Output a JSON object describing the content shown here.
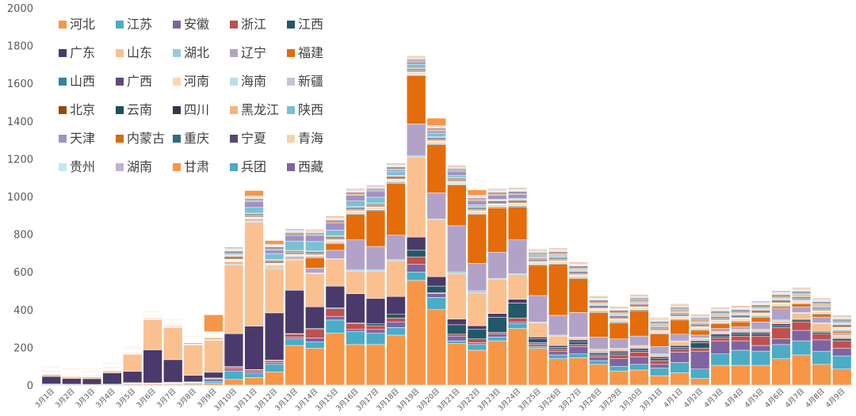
{
  "chart_data": {
    "type": "bar",
    "stacked": true,
    "ylim": [
      0,
      2000
    ],
    "yticks": [
      0,
      200,
      400,
      600,
      800,
      1000,
      1200,
      1400,
      1600,
      1800,
      2000
    ],
    "grid": false,
    "legend_position": "top-left",
    "categories": [
      "3月1日",
      "3月2日",
      "3月3日",
      "3月4日",
      "3月5日",
      "3月6日",
      "3月7日",
      "3月8日",
      "3月9日",
      "3月10日",
      "3月11日",
      "3月12日",
      "3月13日",
      "3月14日",
      "3月15日",
      "3月16日",
      "3月17日",
      "3月18日",
      "3月19日",
      "3月20日",
      "3月21日",
      "3月22日",
      "3月23日",
      "3月24日",
      "3月25日",
      "3月26日",
      "3月27日",
      "3月28日",
      "3月29日",
      "3月30日",
      "3月31日",
      "4月1日",
      "4月2日",
      "4月3日",
      "4月4日",
      "4月5日",
      "4月6日",
      "4月7日",
      "4月8日",
      "4月9日"
    ],
    "series": [
      {
        "name": "河北",
        "color": "#f79646",
        "values": [
          2,
          1,
          1,
          1,
          5,
          5,
          5,
          5,
          10,
          30,
          40,
          70,
          210,
          195,
          275,
          215,
          215,
          265,
          555,
          400,
          220,
          185,
          235,
          300,
          195,
          140,
          145,
          110,
          75,
          80,
          50,
          65,
          35,
          105,
          105,
          105,
          140,
          160,
          110,
          85
        ]
      },
      {
        "name": "江苏",
        "color": "#4bacc6",
        "values": [
          1,
          1,
          1,
          1,
          2,
          2,
          3,
          5,
          10,
          45,
          20,
          40,
          35,
          35,
          70,
          70,
          60,
          40,
          45,
          65,
          15,
          30,
          20,
          25,
          10,
          20,
          20,
          20,
          25,
          30,
          40,
          55,
          50,
          60,
          80,
          75,
          75,
          75,
          70,
          70
        ]
      },
      {
        "name": "安徽",
        "color": "#8064a2",
        "values": [
          1,
          1,
          1,
          1,
          2,
          1,
          3,
          3,
          10,
          10,
          10,
          10,
          10,
          20,
          20,
          10,
          20,
          30,
          40,
          20,
          25,
          10,
          15,
          10,
          10,
          20,
          40,
          20,
          40,
          40,
          20,
          55,
          95,
          70,
          50,
          30,
          30,
          55,
          60,
          40
        ]
      },
      {
        "name": "浙江",
        "color": "#c0504d",
        "values": [
          1,
          1,
          0,
          1,
          2,
          2,
          2,
          2,
          5,
          10,
          10,
          10,
          15,
          45,
          40,
          30,
          20,
          20,
          40,
          5,
          10,
          20,
          10,
          20,
          10,
          10,
          10,
          10,
          20,
          25,
          20,
          15,
          15,
          15,
          25,
          50,
          60,
          45,
          30,
          40
        ]
      },
      {
        "name": "江西",
        "color": "#215968",
        "values": [
          1,
          1,
          1,
          1,
          2,
          2,
          2,
          2,
          3,
          3,
          3,
          3,
          3,
          5,
          5,
          5,
          10,
          20,
          35,
          35,
          50,
          50,
          80,
          80,
          20,
          10,
          15,
          10,
          10,
          10,
          10,
          10,
          30,
          10,
          10,
          10,
          10,
          10,
          10,
          10
        ]
      },
      {
        "name": "广东",
        "color": "#4a3a6b",
        "values": [
          40,
          30,
          30,
          60,
          60,
          175,
          120,
          35,
          30,
          175,
          230,
          250,
          230,
          115,
          115,
          155,
          135,
          95,
          70,
          50,
          30,
          20,
          20,
          20,
          10,
          10,
          10,
          5,
          10,
          10,
          10,
          10,
          10,
          10,
          10,
          10,
          10,
          5,
          5,
          5
        ]
      },
      {
        "name": "山东",
        "color": "#fac090",
        "values": [
          10,
          10,
          10,
          10,
          90,
          160,
          170,
          160,
          170,
          365,
          550,
          235,
          160,
          175,
          140,
          120,
          145,
          190,
          425,
          300,
          240,
          175,
          180,
          130,
          75,
          50,
          10,
          10,
          10,
          10,
          10,
          20,
          10,
          10,
          10,
          10,
          15,
          30,
          40,
          10
        ]
      },
      {
        "name": "湖北",
        "color": "#93cddd",
        "values": [
          2,
          2,
          2,
          2,
          2,
          3,
          3,
          3,
          3,
          5,
          5,
          5,
          5,
          5,
          5,
          5,
          5,
          5,
          5,
          5,
          10,
          10,
          5,
          5,
          5,
          5,
          5,
          5,
          5,
          5,
          5,
          5,
          5,
          5,
          5,
          5,
          5,
          5,
          5,
          5
        ]
      },
      {
        "name": "辽宁",
        "color": "#b3a2c7",
        "values": [
          2,
          2,
          2,
          2,
          3,
          3,
          3,
          3,
          3,
          5,
          5,
          5,
          5,
          25,
          45,
          160,
          125,
          130,
          170,
          140,
          245,
          145,
          140,
          180,
          140,
          105,
          130,
          65,
          50,
          50,
          40,
          35,
          15,
          15,
          15,
          40,
          60,
          30,
          30,
          10
        ]
      },
      {
        "name": "福建",
        "color": "#e46c0a",
        "values": [
          2,
          2,
          2,
          2,
          2,
          3,
          3,
          5,
          5,
          5,
          5,
          5,
          5,
          55,
          35,
          135,
          190,
          275,
          255,
          255,
          215,
          260,
          235,
          175,
          160,
          270,
          180,
          130,
          85,
          135,
          65,
          75,
          25,
          25,
          25,
          25,
          10,
          15,
          15,
          10
        ]
      },
      {
        "name": "山西",
        "color": "#31859c",
        "values": [
          2,
          2,
          2,
          2,
          2,
          2,
          2,
          2,
          3,
          3,
          3,
          3,
          5,
          5,
          5,
          5,
          5,
          5,
          5,
          5,
          5,
          5,
          5,
          5,
          5,
          5,
          5,
          5,
          5,
          5,
          5,
          5,
          5,
          5,
          5,
          5,
          5,
          5,
          5,
          5
        ]
      },
      {
        "name": "广西",
        "color": "#604a7b",
        "values": [
          2,
          2,
          2,
          2,
          2,
          2,
          2,
          2,
          2,
          2,
          2,
          2,
          2,
          2,
          2,
          2,
          2,
          2,
          2,
          2,
          2,
          2,
          2,
          2,
          2,
          2,
          2,
          2,
          2,
          2,
          2,
          2,
          2,
          2,
          2,
          2,
          2,
          2,
          2,
          2
        ]
      },
      {
        "name": "河南",
        "color": "#fcd5b5",
        "values": [
          3,
          3,
          3,
          3,
          3,
          3,
          3,
          3,
          3,
          5,
          5,
          5,
          5,
          5,
          10,
          10,
          10,
          10,
          10,
          10,
          10,
          10,
          10,
          10,
          10,
          10,
          10,
          10,
          10,
          10,
          10,
          10,
          10,
          10,
          10,
          10,
          10,
          10,
          10,
          10
        ]
      },
      {
        "name": "海南",
        "color": "#b7dee8",
        "values": [
          1,
          1,
          1,
          1,
          1,
          1,
          1,
          1,
          1,
          2,
          2,
          2,
          2,
          2,
          2,
          2,
          2,
          2,
          2,
          2,
          2,
          2,
          2,
          2,
          2,
          2,
          2,
          2,
          2,
          2,
          2,
          2,
          2,
          2,
          2,
          2,
          2,
          2,
          2,
          2
        ]
      },
      {
        "name": "新疆",
        "color": "#ccc1da",
        "values": [
          1,
          1,
          1,
          1,
          1,
          1,
          1,
          1,
          1,
          2,
          2,
          2,
          2,
          2,
          2,
          2,
          2,
          2,
          2,
          2,
          2,
          2,
          2,
          2,
          2,
          2,
          2,
          2,
          2,
          2,
          2,
          2,
          2,
          2,
          2,
          2,
          2,
          2,
          2,
          2
        ]
      },
      {
        "name": "北京",
        "color": "#984807",
        "values": [
          2,
          2,
          2,
          2,
          2,
          2,
          2,
          2,
          2,
          5,
          5,
          5,
          5,
          5,
          5,
          5,
          5,
          5,
          5,
          5,
          5,
          5,
          5,
          5,
          5,
          5,
          5,
          5,
          5,
          5,
          5,
          5,
          5,
          5,
          5,
          5,
          5,
          5,
          5,
          5
        ]
      },
      {
        "name": "云南",
        "color": "#1f4e59",
        "values": [
          2,
          2,
          2,
          2,
          2,
          2,
          2,
          2,
          2,
          5,
          5,
          5,
          5,
          5,
          5,
          5,
          5,
          5,
          5,
          5,
          5,
          5,
          5,
          5,
          5,
          5,
          5,
          5,
          5,
          5,
          5,
          5,
          5,
          5,
          5,
          5,
          5,
          5,
          5,
          5
        ]
      },
      {
        "name": "四川",
        "color": "#3f3151",
        "values": [
          2,
          2,
          2,
          2,
          2,
          2,
          2,
          2,
          2,
          5,
          5,
          5,
          5,
          5,
          5,
          5,
          5,
          5,
          5,
          5,
          5,
          5,
          5,
          5,
          5,
          5,
          5,
          5,
          5,
          5,
          5,
          5,
          5,
          5,
          5,
          5,
          5,
          5,
          5,
          5
        ]
      },
      {
        "name": "黑龙江",
        "color": "#f8b37a",
        "values": [
          2,
          2,
          2,
          2,
          2,
          2,
          2,
          2,
          2,
          5,
          5,
          5,
          5,
          5,
          5,
          5,
          5,
          5,
          5,
          5,
          5,
          5,
          5,
          5,
          5,
          5,
          5,
          5,
          5,
          5,
          5,
          5,
          5,
          5,
          5,
          5,
          5,
          5,
          5,
          5
        ]
      },
      {
        "name": "陕西",
        "color": "#78c0d4",
        "values": [
          2,
          2,
          2,
          2,
          2,
          2,
          2,
          2,
          2,
          5,
          30,
          30,
          50,
          50,
          30,
          30,
          30,
          20,
          20,
          20,
          10,
          10,
          5,
          5,
          5,
          5,
          5,
          5,
          5,
          5,
          5,
          5,
          5,
          5,
          5,
          5,
          5,
          5,
          5,
          5
        ]
      },
      {
        "name": "天津",
        "color": "#a390c4",
        "values": [
          2,
          2,
          2,
          2,
          2,
          2,
          2,
          2,
          2,
          5,
          30,
          20,
          30,
          30,
          40,
          30,
          30,
          10,
          10,
          10,
          20,
          20,
          20,
          20,
          5,
          5,
          5,
          5,
          5,
          5,
          5,
          5,
          5,
          5,
          5,
          5,
          5,
          5,
          5,
          5
        ]
      },
      {
        "name": "内蒙古",
        "color": "#d26b0d",
        "values": [
          2,
          2,
          2,
          2,
          2,
          2,
          2,
          2,
          2,
          5,
          5,
          5,
          5,
          5,
          5,
          5,
          5,
          5,
          5,
          5,
          5,
          5,
          5,
          5,
          5,
          5,
          5,
          5,
          5,
          5,
          5,
          5,
          5,
          5,
          5,
          5,
          5,
          5,
          5,
          5
        ]
      },
      {
        "name": "重庆",
        "color": "#2b6f82",
        "values": [
          2,
          2,
          2,
          2,
          2,
          2,
          2,
          2,
          2,
          5,
          5,
          5,
          5,
          5,
          5,
          5,
          5,
          5,
          5,
          5,
          5,
          5,
          5,
          5,
          5,
          5,
          5,
          5,
          5,
          5,
          5,
          5,
          5,
          5,
          5,
          5,
          5,
          5,
          5,
          5
        ]
      },
      {
        "name": "宁夏",
        "color": "#5a4576",
        "values": [
          2,
          2,
          2,
          2,
          2,
          2,
          2,
          2,
          2,
          5,
          5,
          5,
          5,
          5,
          5,
          5,
          5,
          5,
          5,
          5,
          5,
          5,
          5,
          5,
          5,
          5,
          5,
          5,
          5,
          5,
          5,
          5,
          5,
          5,
          5,
          5,
          5,
          5,
          5,
          5
        ]
      },
      {
        "name": "青海",
        "color": "#fbd0a8",
        "values": [
          2,
          2,
          2,
          2,
          2,
          2,
          2,
          2,
          2,
          5,
          5,
          5,
          5,
          5,
          5,
          5,
          5,
          5,
          5,
          5,
          5,
          5,
          5,
          5,
          5,
          5,
          5,
          5,
          5,
          5,
          5,
          5,
          5,
          5,
          5,
          5,
          5,
          5,
          5,
          5
        ]
      },
      {
        "name": "贵州",
        "color": "#c6e6ef",
        "values": [
          2,
          2,
          2,
          2,
          2,
          2,
          2,
          2,
          2,
          5,
          5,
          5,
          5,
          5,
          5,
          5,
          5,
          5,
          5,
          5,
          5,
          5,
          5,
          5,
          5,
          5,
          5,
          5,
          5,
          5,
          5,
          5,
          5,
          5,
          5,
          5,
          5,
          5,
          5,
          5
        ]
      },
      {
        "name": "湖南",
        "color": "#bfb2d4",
        "values": [
          2,
          2,
          2,
          2,
          2,
          2,
          2,
          2,
          2,
          5,
          5,
          5,
          5,
          5,
          5,
          5,
          5,
          5,
          5,
          5,
          5,
          5,
          5,
          5,
          5,
          5,
          5,
          5,
          5,
          5,
          5,
          5,
          5,
          5,
          5,
          5,
          5,
          5,
          5,
          5
        ]
      },
      {
        "name": "甘肃",
        "color": "#f79646",
        "values": [
          3,
          3,
          3,
          3,
          3,
          3,
          3,
          3,
          90,
          5,
          30,
          20,
          5,
          5,
          5,
          5,
          5,
          5,
          5,
          40,
          5,
          30,
          5,
          5,
          5,
          5,
          5,
          5,
          5,
          5,
          5,
          5,
          5,
          5,
          5,
          5,
          5,
          5,
          5,
          5
        ]
      },
      {
        "name": "兵团",
        "color": "#4bacc6",
        "values": [
          1,
          1,
          1,
          1,
          1,
          1,
          1,
          1,
          1,
          2,
          2,
          2,
          2,
          2,
          2,
          2,
          2,
          2,
          2,
          2,
          2,
          2,
          2,
          2,
          2,
          2,
          2,
          2,
          2,
          2,
          2,
          2,
          2,
          2,
          2,
          2,
          2,
          2,
          2,
          2
        ]
      },
      {
        "name": "西藏",
        "color": "#8064a2",
        "values": [
          0,
          0,
          0,
          0,
          0,
          0,
          0,
          0,
          0,
          0,
          0,
          0,
          0,
          0,
          0,
          0,
          0,
          0,
          0,
          0,
          0,
          0,
          0,
          0,
          0,
          0,
          0,
          0,
          0,
          0,
          0,
          0,
          0,
          0,
          0,
          0,
          0,
          0,
          0,
          0
        ]
      }
    ]
  }
}
